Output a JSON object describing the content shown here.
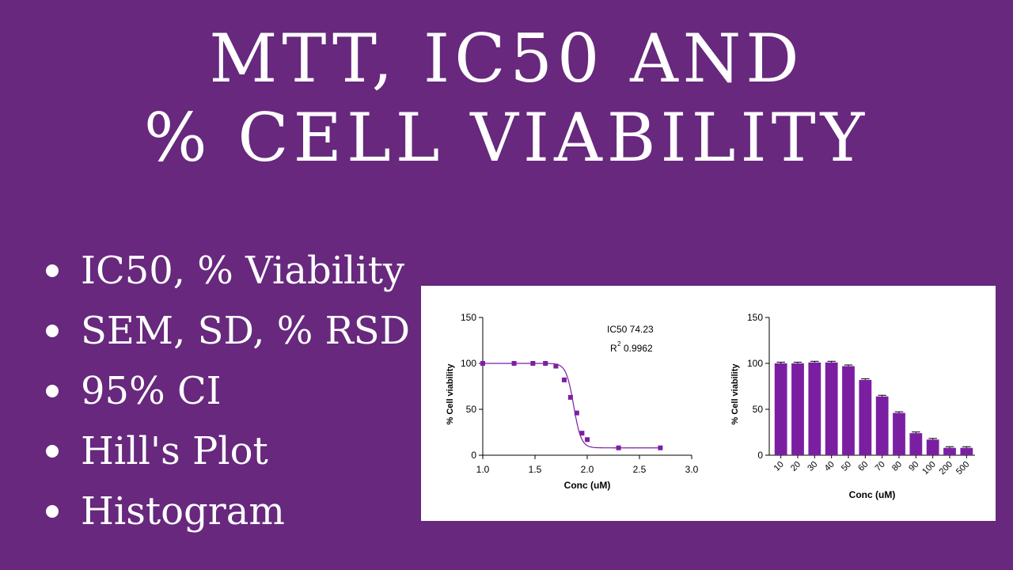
{
  "title": {
    "line1": "MTT, IC50 AND",
    "line2": "% CELL VIABILITY"
  },
  "bullets": [
    "IC50, % Viability",
    "SEM, SD, % RSD",
    "95% CI",
    "Hill's Plot",
    "Histogram"
  ],
  "colors": {
    "background": "#67287d",
    "series": "#7b1fa2",
    "panel": "#ffffff"
  },
  "chart_data": [
    {
      "type": "scatter",
      "xlabel": "Conc (uM)",
      "ylabel": "% Cell viability",
      "xlim": [
        1.0,
        3.0
      ],
      "ylim": [
        0,
        150
      ],
      "xticks": [
        "1.0",
        "1.5",
        "2.0",
        "2.5",
        "3.0"
      ],
      "yticks": [
        "0",
        "50",
        "100",
        "150"
      ],
      "annotations": {
        "ic50_label": "IC50 74.23",
        "r2_label": "R",
        "r2_sup": "2",
        "r2_value": "0.9962"
      },
      "fit": {
        "model": "4PL",
        "top": 100,
        "bottom": 8,
        "log_ic50": 1.87,
        "hill": 12
      },
      "points": [
        {
          "x": 1.0,
          "y": 100
        },
        {
          "x": 1.3,
          "y": 100
        },
        {
          "x": 1.48,
          "y": 100
        },
        {
          "x": 1.6,
          "y": 100
        },
        {
          "x": 1.7,
          "y": 97
        },
        {
          "x": 1.78,
          "y": 82
        },
        {
          "x": 1.84,
          "y": 63
        },
        {
          "x": 1.9,
          "y": 46
        },
        {
          "x": 1.95,
          "y": 24
        },
        {
          "x": 2.0,
          "y": 17
        },
        {
          "x": 2.3,
          "y": 8
        },
        {
          "x": 2.7,
          "y": 8
        }
      ]
    },
    {
      "type": "bar",
      "xlabel": "Conc (uM)",
      "ylabel": "% Cell viability",
      "ylim": [
        0,
        150
      ],
      "yticks": [
        "0",
        "50",
        "100",
        "150"
      ],
      "categories": [
        "10",
        "20",
        "30",
        "40",
        "50",
        "60",
        "70",
        "80",
        "90",
        "100",
        "200",
        "500"
      ],
      "values": [
        100,
        100,
        101,
        101,
        97,
        82,
        64,
        46,
        24,
        17,
        8,
        8
      ]
    }
  ]
}
